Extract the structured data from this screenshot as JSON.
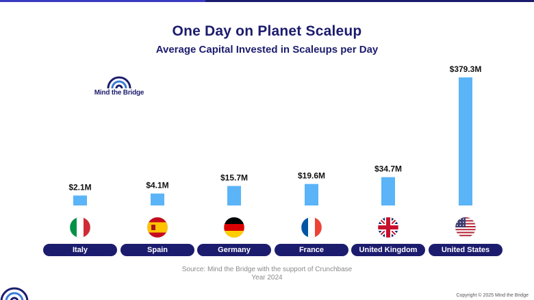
{
  "header": {
    "title": "One Day on Planet Scaleup",
    "subtitle": "Average Capital Invested in Scaleups per Day"
  },
  "logo": {
    "text": "Mind the Bridge",
    "color": "#1c1c6e"
  },
  "chart_data": {
    "type": "bar",
    "categories": [
      "Italy",
      "Spain",
      "Germany",
      "France",
      "United Kingdom",
      "United States"
    ],
    "values": [
      2.1,
      4.1,
      15.7,
      19.6,
      34.7,
      379.3
    ],
    "value_labels": [
      "$2.1M",
      "$4.1M",
      "$15.7M",
      "$19.6M",
      "$34.7M",
      "$379.3M"
    ],
    "flags": [
      "italy-flag-icon",
      "spain-flag-icon",
      "germany-flag-icon",
      "france-flag-icon",
      "united-kingdom-flag-icon",
      "united-states-flag-icon"
    ],
    "bar_color": "#5ab4f7",
    "pill_color": "#1c1c6e",
    "grid": false
  },
  "footer": {
    "source_line1": "Source: Mind the Bridge with the support of Crunchbase",
    "source_line2": "Year 2024",
    "copyright": "Copyright © 2025 Mind the Bridge"
  }
}
